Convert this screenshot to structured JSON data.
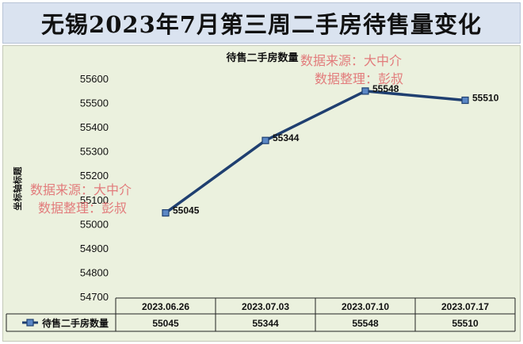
{
  "page_title": "无锡2023年7月第三周二手房待售量变化",
  "watermarks": {
    "line1": "数据来源：大中介",
    "line2": "数据整理：彭叔"
  },
  "chart_data": {
    "type": "line",
    "title": "待售二手房数量",
    "ylabel": "坐标轴标题",
    "ylim": [
      54700,
      55600
    ],
    "yticks": [
      "55600",
      "55500",
      "55400",
      "55300",
      "55200",
      "55100",
      "55000",
      "54900",
      "54800",
      "54700"
    ],
    "categories": [
      "2023.06.26",
      "2023.07.03",
      "2023.07.10",
      "2023.07.17"
    ],
    "series": [
      {
        "name": "待售二手房数量",
        "values": [
          55045,
          55344,
          55548,
          55510
        ]
      }
    ],
    "data_labels": [
      "55045",
      "55344",
      "55548",
      "55510"
    ],
    "line_color": "#1f3f70",
    "marker_color": "#5b87c5",
    "grid": false,
    "legend": "data-table"
  }
}
